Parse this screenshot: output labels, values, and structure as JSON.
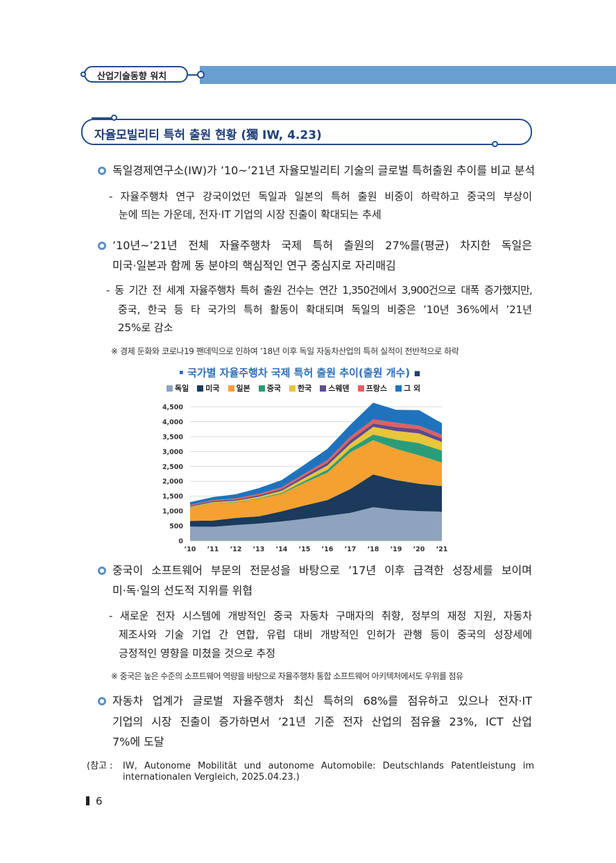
{
  "header": {
    "title": "산업기술동향 워치"
  },
  "section": {
    "title": "자율모빌리티 특허 출원 현황 (獨 IW, 4.23)"
  },
  "blocks": {
    "b1": {
      "main": [
        "독일경제연구소(IW)가 ’10~’21년 자율모빌리티 기술의 글로벌 특허출원 추이를 비교 분석"
      ],
      "sub": [
        "- 자율주행차 연구 강국이었던 독일과 일본의 특허 출원 비중이 하락하고 중국의 부상이",
        "눈에 띄는 가운데, 전자·IT 기업의 시장 진출이 확대되는 추세"
      ]
    },
    "b2": {
      "main": [
        "’10년~’21년 전체 자율주행차 국제 특허 출원의 27%를(평균) 차지한 독일은",
        "미국·일본과 함께 동 분야의 핵심적인 연구 중심지로 자리매김"
      ],
      "sub": [
        "- 동 기간 전 세계 자율주행차 특허 출원 건수는 연간 1,350건에서 3,900건으로 대폭 증가했지만,",
        "중국, 한국 등 타 국가의 특허 활동이 확대되며 독일의 비중은 ’10년 36%에서 ’21년",
        "25%로 감소"
      ],
      "note": "※ 경제 둔화와 코로나19 팬데믹으로 인하여 ’18년 이후 독일 자동차산업의 특허 실적이 전반적으로 하락"
    },
    "b3": {
      "main": [
        "중국이 소프트웨어 부문의 전문성을 바탕으로 ’17년 이후 급격한 성장세를 보이며",
        "미·독·일의 선도적 지위를 위협"
      ],
      "sub": [
        "- 새로운 전자 시스템에 개방적인 중국 자동차 구매자의 취향, 정부의 재정 지원, 자동차",
        "제조사와 기술 기업 간 연합, 유럽 대비 개방적인 인허가 관행 등이 중국의 성장세에",
        "긍정적인 영향을 미쳤을 것으로 추정"
      ],
      "note": "※ 중국은 높은 수준의 소프트웨어 역량을 바탕으로 자율주행차 통합 소프트웨어 아키텍처에서도 우위를 점유"
    },
    "b4": {
      "main": [
        "자동차 업계가 글로벌 자율주행차 최신 특허의 68%를 점유하고 있으나 전자·IT",
        "기업의 시장 진출이 증가하면서 ’21년 기준 전자 산업의 점유율 23%, ICT 산업",
        "7%에 도달"
      ]
    }
  },
  "reference": {
    "label": "(참고 :",
    "line1": "IW, Autonome Mobilität und autonome Automobile: Deutschlands Patentleistung im",
    "line2": "internationalen Vergleich, 2025.04.23.)"
  },
  "page_number": "6",
  "chart_data": {
    "type": "area",
    "stacked": true,
    "title": "국가별 자율주행차 국제 특허 출원 추이(출원 개수)",
    "categories": [
      "’10",
      "’11",
      "’12",
      "’13",
      "’14",
      "’15",
      "’16",
      "’17",
      "’18",
      "’19",
      "’20",
      "’21"
    ],
    "ylim": [
      0,
      4500
    ],
    "yticks": [
      "0",
      "500",
      "1,000",
      "1,500",
      "2,000",
      "2,500",
      "3,000",
      "3,500",
      "4,000",
      "4,500"
    ],
    "ytick_values": [
      0,
      500,
      1000,
      1500,
      2000,
      2500,
      3000,
      3500,
      4000,
      4500
    ],
    "grid": true,
    "legend_position": "top",
    "series": [
      {
        "name": "독일",
        "color": "#8ea3bd",
        "values": [
          480,
          470,
          530,
          580,
          650,
          740,
          840,
          940,
          1130,
          1040,
          1000,
          980
        ]
      },
      {
        "name": "미국",
        "color": "#1b3a5c",
        "values": [
          190,
          210,
          240,
          240,
          340,
          450,
          530,
          800,
          1100,
          1000,
          920,
          860
        ]
      },
      {
        "name": "일본",
        "color": "#f5a131",
        "values": [
          450,
          580,
          520,
          590,
          590,
          760,
          920,
          1230,
          1150,
          1050,
          950,
          790
        ]
      },
      {
        "name": "중국",
        "color": "#2a9d78",
        "values": [
          10,
          10,
          15,
          20,
          30,
          60,
          100,
          130,
          190,
          310,
          410,
          400
        ]
      },
      {
        "name": "한국",
        "color": "#e8c53a",
        "values": [
          20,
          30,
          40,
          50,
          70,
          100,
          140,
          160,
          260,
          290,
          330,
          290
        ]
      },
      {
        "name": "스웨덴",
        "color": "#5e4a8f",
        "values": [
          30,
          40,
          40,
          50,
          60,
          80,
          100,
          120,
          110,
          130,
          140,
          120
        ]
      },
      {
        "name": "프랑스",
        "color": "#e06060",
        "values": [
          30,
          30,
          40,
          50,
          60,
          70,
          80,
          120,
          140,
          150,
          120,
          120
        ]
      },
      {
        "name": "그 외",
        "color": "#1f73bd",
        "values": [
          90,
          100,
          140,
          190,
          240,
          300,
          380,
          400,
          560,
          430,
          520,
          390
        ]
      }
    ]
  }
}
